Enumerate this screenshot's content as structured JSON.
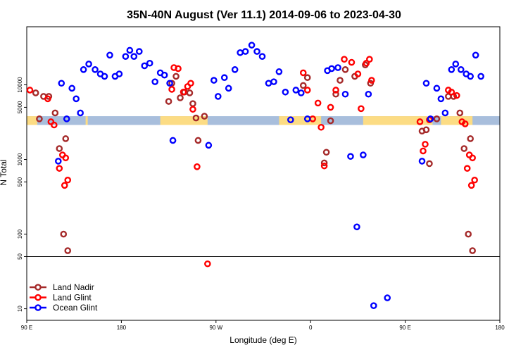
{
  "chart_data": {
    "type": "scatter",
    "title": "35N-40N August (Ver 11.1)   2014-09-06 to 2023-04-30",
    "xlabel": "Longitude (deg E)",
    "ylabel": "N Total",
    "x_ticks": [
      {
        "value": 90,
        "label": "90 E"
      },
      {
        "value": 180,
        "label": "180"
      },
      {
        "value": 270,
        "label": "90 W"
      },
      {
        "value": 360,
        "label": "0"
      },
      {
        "value": 450,
        "label": "90 E"
      },
      {
        "value": 540,
        "label": "180"
      }
    ],
    "y_ticks": [
      {
        "value": 10,
        "label": "10"
      },
      {
        "value": 50,
        "label": "50"
      },
      {
        "value": 100,
        "label": "100"
      },
      {
        "value": 500,
        "label": "500"
      },
      {
        "value": 1000,
        "label": "1000"
      },
      {
        "value": 5000,
        "label": "5000"
      },
      {
        "value": 10000,
        "label": "10000"
      }
    ],
    "xlim": [
      90,
      540
    ],
    "ylim": [
      7,
      60000
    ],
    "y_scale": "log",
    "reference_line_y": 50,
    "legend_position": "bottom-left",
    "surface_band": {
      "y_low": 2900,
      "y_high": 3800,
      "ocean_color": "#a8bedc",
      "land_color": "#fcdc84",
      "land_ranges": [
        [
          90,
          100
        ],
        [
          146,
          148
        ],
        [
          217,
          262
        ],
        [
          330,
          370
        ],
        [
          410,
          476
        ],
        [
          484,
          514
        ]
      ]
    },
    "series": [
      {
        "name": "Land Nadir",
        "color": "#a52a2a",
        "points": [
          [
            98.5,
            7800
          ],
          [
            102,
            3500
          ],
          [
            106,
            7000
          ],
          [
            111,
            7000
          ],
          [
            117,
            4200
          ],
          [
            121,
            1400
          ],
          [
            125,
            100
          ],
          [
            127,
            1900
          ],
          [
            129,
            60
          ],
          [
            225,
            6000
          ],
          [
            228,
            10500
          ],
          [
            232,
            13000
          ],
          [
            236,
            6700
          ],
          [
            240,
            8000
          ],
          [
            245,
            7800
          ],
          [
            248,
            5600
          ],
          [
            251,
            3600
          ],
          [
            253,
            1800
          ],
          [
            259,
            3800
          ],
          [
            353,
            9800
          ],
          [
            357,
            12500
          ],
          [
            373,
            900
          ],
          [
            375,
            1250
          ],
          [
            379,
            3300
          ],
          [
            384,
            7500
          ],
          [
            388,
            11500
          ],
          [
            393,
            16000
          ],
          [
            402,
            13000
          ],
          [
            412,
            18500
          ],
          [
            417,
            10500
          ],
          [
            466,
            2400
          ],
          [
            470,
            2500
          ],
          [
            473,
            880
          ],
          [
            480,
            3500
          ],
          [
            491,
            7000
          ],
          [
            496,
            7000
          ],
          [
            502,
            4200
          ],
          [
            506,
            1400
          ],
          [
            510,
            100
          ],
          [
            512,
            1900
          ],
          [
            514,
            60
          ]
        ]
      },
      {
        "name": "Land Glint",
        "color": "#ff0000",
        "points": [
          [
            93,
            8500
          ],
          [
            110,
            6500
          ],
          [
            113,
            3200
          ],
          [
            116,
            2900
          ],
          [
            121,
            760
          ],
          [
            124,
            1150
          ],
          [
            126,
            450
          ],
          [
            127,
            1050
          ],
          [
            129,
            530
          ],
          [
            228,
            8700
          ],
          [
            230,
            17000
          ],
          [
            234,
            16500
          ],
          [
            239,
            8000
          ],
          [
            243,
            9500
          ],
          [
            246,
            10500
          ],
          [
            248,
            4700
          ],
          [
            252,
            800
          ],
          [
            262,
            40
          ],
          [
            353,
            14500
          ],
          [
            357,
            8500
          ],
          [
            362,
            3500
          ],
          [
            367,
            5700
          ],
          [
            370,
            2700
          ],
          [
            373,
            820
          ],
          [
            379,
            5000
          ],
          [
            384,
            8500
          ],
          [
            392,
            22000
          ],
          [
            399,
            20000
          ],
          [
            405,
            14000
          ],
          [
            408,
            4800
          ],
          [
            413,
            19500
          ],
          [
            416,
            22000
          ],
          [
            418,
            11500
          ],
          [
            464,
            3200
          ],
          [
            467,
            1300
          ],
          [
            469,
            1600
          ],
          [
            473,
            3400
          ],
          [
            491,
            8500
          ],
          [
            494,
            8000
          ],
          [
            499,
            7200
          ],
          [
            504,
            3200
          ],
          [
            507,
            3000
          ],
          [
            509,
            760
          ],
          [
            511,
            1150
          ],
          [
            513,
            450
          ],
          [
            514,
            1050
          ],
          [
            516,
            530
          ]
        ]
      },
      {
        "name": "Ocean Glint",
        "color": "#0000ff",
        "points": [
          [
            120,
            950
          ],
          [
            123,
            10500
          ],
          [
            128,
            3500
          ],
          [
            133,
            9000
          ],
          [
            137,
            6500
          ],
          [
            141,
            4200
          ],
          [
            144,
            16000
          ],
          [
            149,
            19000
          ],
          [
            155,
            16000
          ],
          [
            160,
            14000
          ],
          [
            164,
            13000
          ],
          [
            169,
            25000
          ],
          [
            174,
            13000
          ],
          [
            178,
            14000
          ],
          [
            184,
            24000
          ],
          [
            188,
            29000
          ],
          [
            192,
            24000
          ],
          [
            197,
            28000
          ],
          [
            202,
            18000
          ],
          [
            207,
            19500
          ],
          [
            212,
            11000
          ],
          [
            217,
            14500
          ],
          [
            221,
            13500
          ],
          [
            226,
            10500
          ],
          [
            229,
            1800
          ],
          [
            263,
            1550
          ],
          [
            268,
            11500
          ],
          [
            272,
            7000
          ],
          [
            278,
            12500
          ],
          [
            282,
            9000
          ],
          [
            288,
            16000
          ],
          [
            293,
            27000
          ],
          [
            298,
            28000
          ],
          [
            304,
            34000
          ],
          [
            309,
            28000
          ],
          [
            314,
            24000
          ],
          [
            320,
            10500
          ],
          [
            325,
            11000
          ],
          [
            330,
            15000
          ],
          [
            336,
            8000
          ],
          [
            341,
            3400
          ],
          [
            346,
            8500
          ],
          [
            351,
            7800
          ],
          [
            357,
            3500
          ],
          [
            376,
            15500
          ],
          [
            380,
            16500
          ],
          [
            386,
            17000
          ],
          [
            393,
            7500
          ],
          [
            398,
            1100
          ],
          [
            404,
            125
          ],
          [
            410,
            1150
          ],
          [
            415,
            7500
          ],
          [
            420,
            11
          ],
          [
            433,
            14
          ],
          [
            466,
            950
          ],
          [
            470,
            10500
          ],
          [
            474,
            3500
          ],
          [
            480,
            9000
          ],
          [
            484,
            6500
          ],
          [
            488,
            4200
          ],
          [
            494,
            16000
          ],
          [
            498,
            19000
          ],
          [
            503,
            16000
          ],
          [
            508,
            14000
          ],
          [
            512,
            13000
          ],
          [
            517,
            25000
          ],
          [
            522,
            13000
          ]
        ]
      }
    ]
  }
}
